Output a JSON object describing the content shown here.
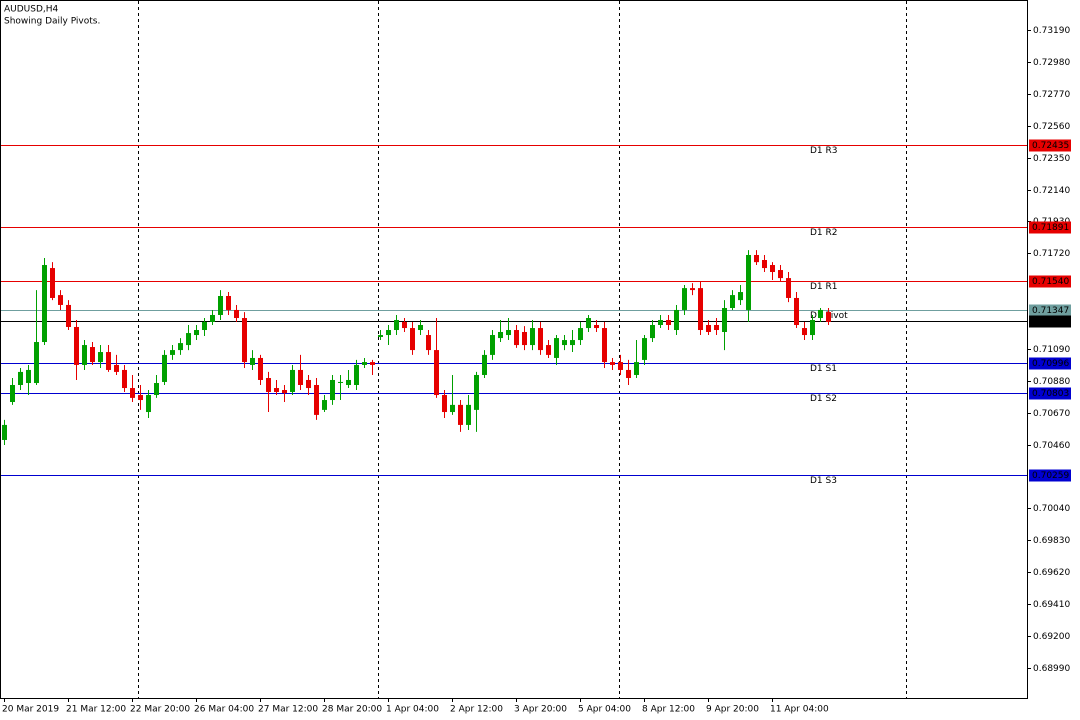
{
  "chart_data": {
    "type": "candlestick",
    "title": "AUDUSD,H4",
    "subtitle": "Showing Daily Pivots.",
    "categories": [
      "20 Mar 2019",
      null,
      null,
      null,
      null,
      null,
      null,
      null,
      "21 Mar 12:00",
      null,
      null,
      null,
      null,
      null,
      null,
      null,
      "22 Mar 20:00",
      null,
      null,
      null,
      null,
      null,
      null,
      null,
      "26 Mar 04:00",
      null,
      null,
      null,
      null,
      null,
      null,
      null,
      "27 Mar 12:00",
      null,
      null,
      null,
      null,
      null,
      null,
      null,
      "28 Mar 20:00",
      null,
      null,
      null,
      null,
      null,
      null,
      null,
      "1 Apr 04:00",
      null,
      null,
      null,
      null,
      null,
      null,
      null,
      "2 Apr 12:00",
      null,
      null,
      null,
      null,
      null,
      null,
      null,
      "3 Apr 20:00",
      null,
      null,
      null,
      null,
      null,
      null,
      null,
      "5 Apr 04:00",
      null,
      null,
      null,
      null,
      null,
      null,
      null,
      "8 Apr 12:00",
      null,
      null,
      null,
      null,
      null,
      null,
      null,
      "9 Apr 20:00",
      null,
      null,
      null,
      null,
      null,
      null,
      null,
      "11 Apr 04:00",
      null,
      null,
      null,
      null,
      null,
      null,
      null
    ],
    "open": [
      0.70491,
      0.70741,
      0.70853,
      0.70866,
      0.70866,
      0.71136,
      0.71623,
      0.71445,
      0.7138,
      0.71235,
      0.70985,
      0.71103,
      0.71004,
      0.7107,
      0.70985,
      0.70952,
      0.70833,
      0.70787,
      0.70675,
      0.70787,
      0.70873,
      0.71051,
      0.71083,
      0.71116,
      0.71182,
      0.71215,
      0.71268,
      0.71314,
      0.71439,
      0.71347,
      0.71294,
      0.70985,
      0.71031,
      0.70899,
      0.70833,
      0.7082,
      0.70807,
      0.70952,
      0.70886,
      0.70853,
      0.70689,
      0.70754,
      0.70873,
      0.70853,
      0.70853,
      0.70985,
      0.71004,
      0.71169,
      0.71182,
      0.71215,
      0.71268,
      0.71228,
      0.71215,
      0.71182,
      0.71083,
      0.70787,
      0.70675,
      0.70722,
      0.7059,
      0.70689,
      0.70919,
      0.71051,
      0.71162,
      0.71182,
      0.71215,
      0.71202,
      0.71116,
      0.71228,
      0.71116,
      0.71031,
      0.71116,
      0.71116,
      0.71149,
      0.71228,
      0.71248,
      0.71228,
      0.71004,
      0.71004,
      0.70952,
      0.70919,
      0.71018,
      0.71162,
      0.71248,
      0.71281,
      0.71215,
      0.71347,
      0.71491,
      0.71491,
      0.71248,
      0.71248,
      0.71202,
      0.7136,
      0.71412,
      0.71347,
      0.71709,
      0.71676,
      0.71643,
      0.7161,
      0.71557,
      0.71426,
      0.71228,
      0.71182,
      0.71294,
      0.71333
    ],
    "high": [
      0.70623,
      0.70899,
      0.70965,
      0.70985,
      0.71478,
      0.71689,
      0.71662,
      0.71478,
      0.71412,
      0.71281,
      0.71149,
      0.71136,
      0.71116,
      0.71116,
      0.71051,
      0.70985,
      0.70919,
      0.70853,
      0.7082,
      0.70919,
      0.71083,
      0.71116,
      0.71162,
      0.71248,
      0.71248,
      0.71294,
      0.71347,
      0.71478,
      0.71465,
      0.7138,
      0.71333,
      0.71083,
      0.71051,
      0.70939,
      0.70886,
      0.70853,
      0.70985,
      0.71051,
      0.70919,
      0.70899,
      0.70787,
      0.70919,
      0.70919,
      0.70952,
      0.71018,
      0.71031,
      0.71018,
      0.71215,
      0.71248,
      0.71314,
      0.71294,
      0.71268,
      0.71281,
      0.71215,
      0.71294,
      0.7082,
      0.70919,
      0.70754,
      0.70787,
      0.70939,
      0.71083,
      0.71215,
      0.71281,
      0.71294,
      0.71248,
      0.71241,
      0.71281,
      0.71268,
      0.71149,
      0.71182,
      0.71182,
      0.71215,
      0.71268,
      0.71314,
      0.71281,
      0.71268,
      0.71031,
      0.71051,
      0.71018,
      0.71149,
      0.71182,
      0.71281,
      0.71314,
      0.71314,
      0.7138,
      0.71511,
      0.71524,
      0.71531,
      0.71281,
      0.71294,
      0.71412,
      0.71478,
      0.71511,
      0.71741,
      0.71741,
      0.71709,
      0.71662,
      0.71643,
      0.71597,
      0.71465,
      0.71268,
      0.71314,
      0.7136,
      0.7136
    ],
    "low": [
      0.70458,
      0.70722,
      0.7082,
      0.70787,
      0.70853,
      0.71116,
      0.71412,
      0.71347,
      0.71215,
      0.70886,
      0.70952,
      0.70985,
      0.70965,
      0.70939,
      0.70919,
      0.70807,
      0.70741,
      0.70689,
      0.70636,
      0.70768,
      0.70853,
      0.71018,
      0.71051,
      0.71083,
      0.71149,
      0.71176,
      0.71248,
      0.71281,
      0.71314,
      0.71268,
      0.70965,
      0.70952,
      0.70853,
      0.70675,
      0.70787,
      0.70741,
      0.70787,
      0.7082,
      0.70787,
      0.70623,
      0.70675,
      0.70722,
      0.70754,
      0.70833,
      0.7082,
      0.70965,
      0.70919,
      0.71149,
      0.71116,
      0.71182,
      0.71202,
      0.71051,
      0.71182,
      0.71051,
      0.70768,
      0.70636,
      0.70656,
      0.70544,
      0.70557,
      0.70544,
      0.70899,
      0.71018,
      0.71136,
      0.71149,
      0.71097,
      0.71083,
      0.71083,
      0.71051,
      0.71031,
      0.70985,
      0.71083,
      0.7107,
      0.71116,
      0.71202,
      0.71202,
      0.70965,
      0.70952,
      0.70919,
      0.70853,
      0.70899,
      0.70985,
      0.71136,
      0.71228,
      0.71215,
      0.71182,
      0.71314,
      0.71445,
      0.71182,
      0.71182,
      0.71182,
      0.71083,
      0.71347,
      0.7138,
      0.71268,
      0.71643,
      0.71597,
      0.71544,
      0.71531,
      0.71399,
      0.71228,
      0.71149,
      0.71149,
      0.71268,
      0.71248
    ],
    "close": [
      0.7059,
      0.70853,
      0.70939,
      0.70952,
      0.71136,
      0.71643,
      0.71426,
      0.7138,
      0.71235,
      0.70985,
      0.71116,
      0.71004,
      0.7107,
      0.70952,
      0.70939,
      0.70833,
      0.70768,
      0.70754,
      0.70787,
      0.70866,
      0.71051,
      0.71083,
      0.71129,
      0.71195,
      0.71215,
      0.71268,
      0.71314,
      0.71439,
      0.71347,
      0.71294,
      0.71004,
      0.71031,
      0.70886,
      0.70807,
      0.70807,
      0.708,
      0.70952,
      0.70853,
      0.70833,
      0.70656,
      0.70754,
      0.70886,
      0.70873,
      0.70886,
      0.70985,
      0.71004,
      0.70985,
      0.71182,
      0.71215,
      0.71281,
      0.71228,
      0.71083,
      0.71248,
      0.71083,
      0.70787,
      0.70675,
      0.70722,
      0.7059,
      0.70722,
      0.70919,
      0.71051,
      0.71182,
      0.71202,
      0.71215,
      0.71116,
      0.71116,
      0.71228,
      0.71083,
      0.71051,
      0.71162,
      0.71149,
      0.71149,
      0.71228,
      0.71294,
      0.71228,
      0.71004,
      0.70985,
      0.70952,
      0.70899,
      0.71004,
      0.71162,
      0.71248,
      0.71281,
      0.71248,
      0.71347,
      0.71491,
      0.71478,
      0.71215,
      0.71202,
      0.71215,
      0.7136,
      0.71445,
      0.71465,
      0.71709,
      0.71662,
      0.71623,
      0.71597,
      0.71557,
      0.71426,
      0.71248,
      0.71182,
      0.71281,
      0.71347,
      0.71268
    ],
    "up_color": "#00a000",
    "down_color": "#e60000",
    "ylim": [
      0.68792,
      0.73388
    ],
    "yticks": [
      {
        "value": 0.7319,
        "label": "0.73190"
      },
      {
        "value": 0.7298,
        "label": "0.72980"
      },
      {
        "value": 0.7277,
        "label": "0.72770"
      },
      {
        "value": 0.7256,
        "label": "0.72560"
      },
      {
        "value": 0.7235,
        "label": "0.72350"
      },
      {
        "value": 0.7214,
        "label": "0.72140"
      },
      {
        "value": 0.7193,
        "label": "0.71930"
      },
      {
        "value": 0.7172,
        "label": "0.71720"
      },
      {
        "value": 0.7109,
        "label": "0.71090"
      },
      {
        "value": 0.7088,
        "label": "0.70880"
      },
      {
        "value": 0.7067,
        "label": "0.70670"
      },
      {
        "value": 0.7046,
        "label": "0.70460"
      },
      {
        "value": 0.7004,
        "label": "0.70040"
      },
      {
        "value": 0.6983,
        "label": "0.69830"
      },
      {
        "value": 0.6962,
        "label": "0.69620"
      },
      {
        "value": 0.6941,
        "label": "0.69410"
      },
      {
        "value": 0.692,
        "label": "0.69200"
      },
      {
        "value": 0.6899,
        "label": "0.68990"
      }
    ],
    "levels": [
      {
        "name": "D1 R3",
        "value": 0.72435,
        "color": "#e60000"
      },
      {
        "name": "D1 R2",
        "value": 0.71891,
        "color": "#e60000"
      },
      {
        "name": "D1 R1",
        "value": 0.7154,
        "value_label": "0.71540",
        "color": "#e60000"
      },
      {
        "name": "D1 Pivot",
        "value": 0.71347,
        "color": "#6f9f9f"
      },
      {
        "name": "D1 S1",
        "value": 0.70996,
        "color": "#0000d0"
      },
      {
        "name": "D1 S2",
        "value": 0.70803,
        "color": "#0000d0"
      },
      {
        "name": "D1 S3",
        "value": 0.70259,
        "color": "#0000d0"
      }
    ],
    "current_price": {
      "value": 0.71272,
      "color": "#000000"
    }
  }
}
